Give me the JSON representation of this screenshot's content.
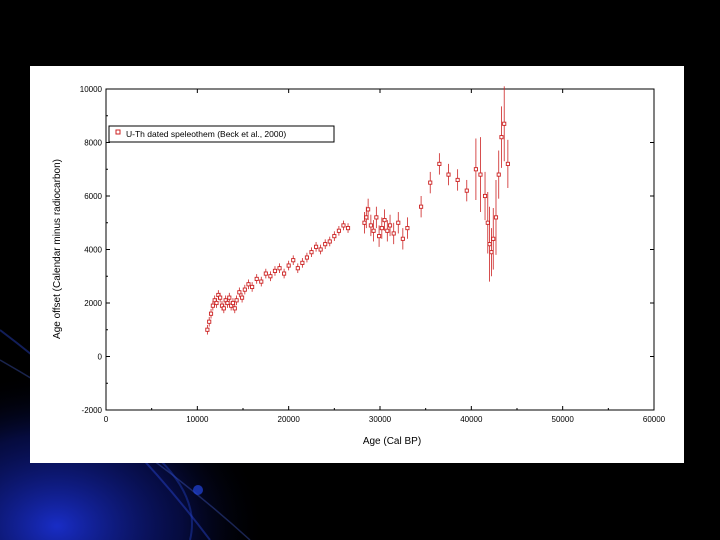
{
  "chart_data": {
    "type": "scatter",
    "xlabel": "Age (Cal BP)",
    "ylabel": "Age offset (Calendar minus radiocarbon)",
    "xlim": [
      0,
      60000
    ],
    "ylim": [
      -2000,
      10000
    ],
    "xticks": [
      "0",
      "10000",
      "20000",
      "30000",
      "40000",
      "50000",
      "60000"
    ],
    "yticks": [
      "-2000",
      "0",
      "2000",
      "4000",
      "6000",
      "8000",
      "10000"
    ],
    "grid": false,
    "legend_position": "top-left",
    "marker_color": "#cc2222",
    "series": [
      {
        "name": "U-Th dated speleothem (Beck et al., 2000)",
        "x": [
          11100,
          11300,
          11500,
          11700,
          11900,
          12100,
          12300,
          12500,
          12700,
          12900,
          13100,
          13300,
          13500,
          13700,
          13900,
          14100,
          14300,
          14600,
          14900,
          15200,
          15600,
          16000,
          16500,
          17000,
          17500,
          18000,
          18500,
          19000,
          19500,
          20000,
          20500,
          21000,
          21500,
          22000,
          22500,
          23000,
          23500,
          24000,
          24500,
          25000,
          25500,
          26000,
          26500,
          28300,
          28500,
          28700,
          29000,
          29300,
          29600,
          29900,
          30200,
          30500,
          30800,
          31100,
          31500,
          32000,
          32500,
          33000,
          34500,
          35500,
          36500,
          37500,
          38500,
          39500,
          40500,
          41000,
          41500,
          41800,
          42000,
          42200,
          42400,
          42700,
          43000,
          43300,
          43600,
          44000
        ],
        "y": [
          1000,
          1300,
          1600,
          1900,
          2100,
          2000,
          2300,
          2200,
          1900,
          1800,
          2100,
          2000,
          2200,
          1900,
          2000,
          1800,
          2100,
          2400,
          2200,
          2500,
          2700,
          2600,
          2900,
          2800,
          3100,
          3000,
          3200,
          3300,
          3100,
          3400,
          3600,
          3300,
          3500,
          3700,
          3900,
          4100,
          4000,
          4200,
          4300,
          4500,
          4700,
          4900,
          4800,
          5000,
          5200,
          5500,
          4900,
          4700,
          5200,
          4500,
          4800,
          5100,
          4700,
          4900,
          4600,
          5000,
          4400,
          4800,
          5600,
          6500,
          7200,
          6800,
          6600,
          6200,
          7000,
          6800,
          6000,
          5000,
          4200,
          3900,
          4400,
          5200,
          6800,
          8200,
          8700,
          7200
        ]
      }
    ]
  }
}
